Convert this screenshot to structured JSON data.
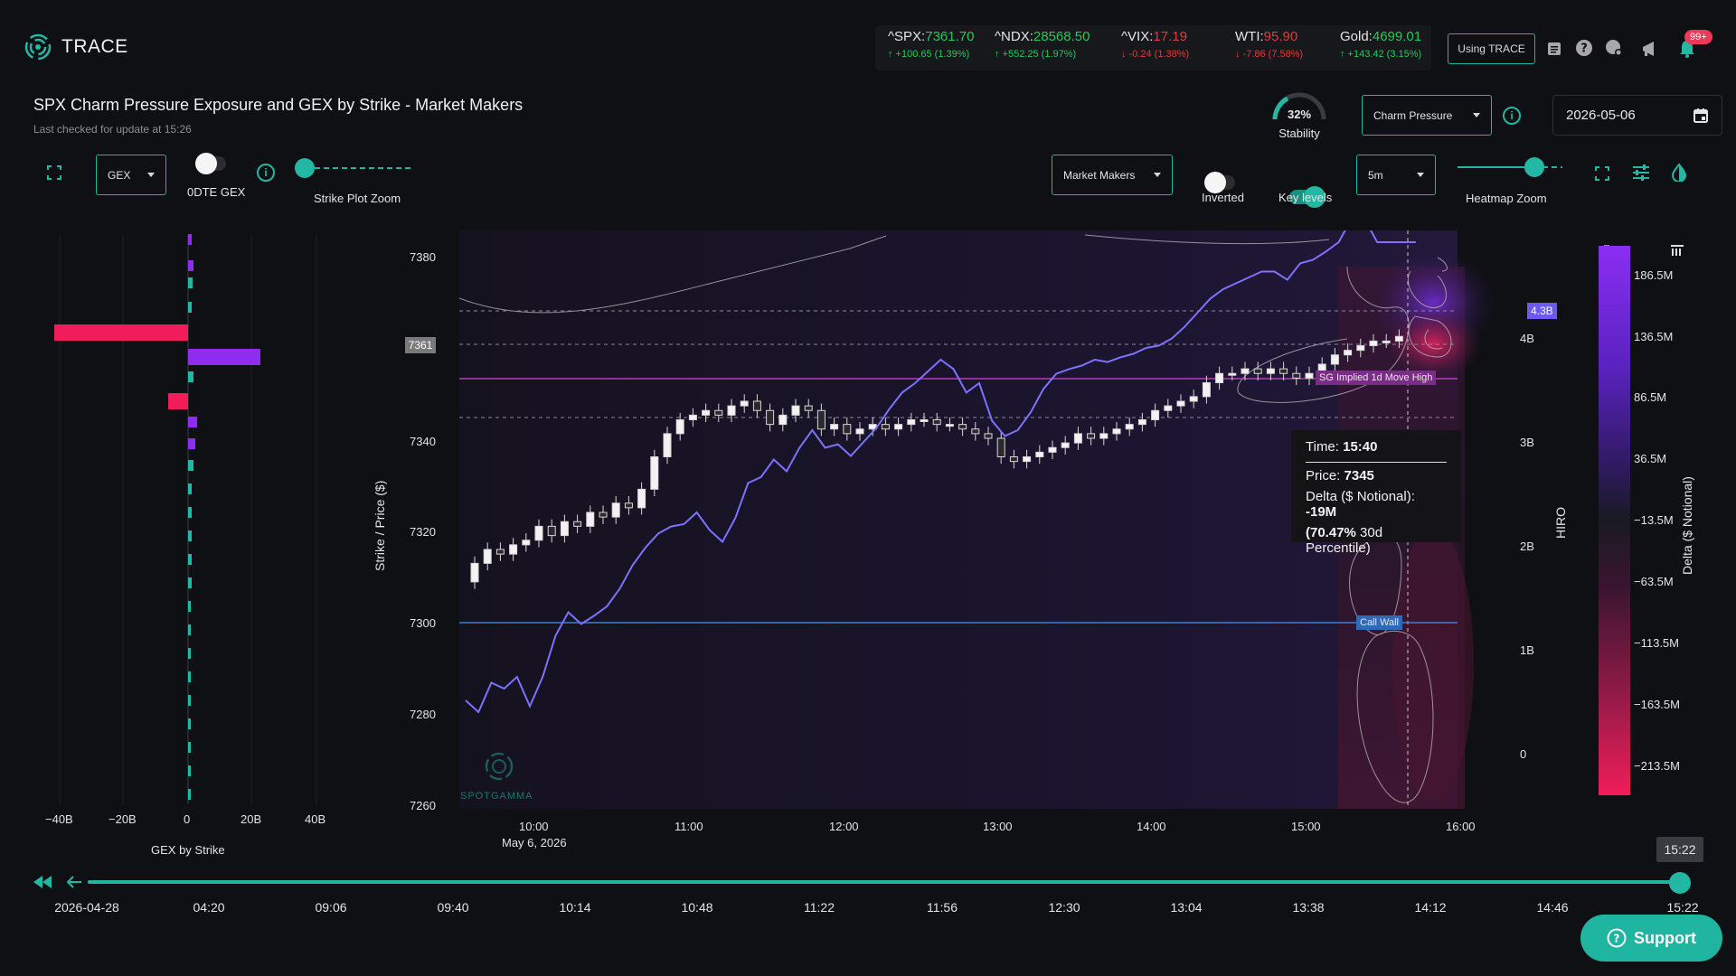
{
  "app": {
    "name": "TRACE"
  },
  "tickers": [
    {
      "symbol": "^SPX:",
      "value": "7361.70",
      "change": "↑ +100.65 (1.39%)",
      "dir": "up"
    },
    {
      "symbol": "^NDX:",
      "value": "28568.50",
      "change": "↑ +552.25 (1.97%)",
      "dir": "up"
    },
    {
      "symbol": "^VIX:",
      "value": "17.19",
      "change": "↓ -0.24 (1.38%)",
      "dir": "down"
    },
    {
      "symbol": "WTI:",
      "value": "95.90",
      "change": "↓ -7.86 (7.58%)",
      "dir": "down"
    },
    {
      "symbol": "Gold:",
      "value": "4699.01",
      "change": "↑ +143.42 (3.15%)",
      "dir": "up"
    }
  ],
  "header": {
    "using_trace": "Using TRACE",
    "notification_count": "99+",
    "title": "SPX Charm Pressure Exposure and GEX by Strike - Market Makers",
    "last_checked": "Last checked for update at 15:26",
    "stability_value": "32%",
    "stability_label": "Stability",
    "metric_select": "Charm Pressure",
    "date": "2026-05-06"
  },
  "controls": {
    "gex_select": "GEX",
    "odte_label": "0DTE GEX",
    "strike_zoom_label": "Strike Plot Zoom",
    "participant_select": "Market Makers",
    "inverted_label": "Inverted",
    "key_levels_label": "Key levels",
    "interval_select": "5m",
    "heatmap_zoom_label": "Heatmap Zoom"
  },
  "gex_axis": {
    "ticks": [
      "−40B",
      "−20B",
      "0",
      "20B",
      "40B"
    ],
    "title": "GEX by Strike"
  },
  "main_chart": {
    "y_title": "Strike / Price ($)",
    "y_ticks": [
      "7380",
      "7360",
      "7340",
      "7320",
      "7300",
      "7280",
      "7260"
    ],
    "price_tag": "7361",
    "x_ticks": [
      "10:00",
      "11:00",
      "12:00",
      "13:00",
      "14:00",
      "15:00",
      "16:00"
    ],
    "date_label": "May 6, 2026",
    "hiro_title": "HIRO",
    "hiro_ticks": [
      "4B",
      "3B",
      "2B",
      "1B",
      "0"
    ],
    "hiro_tag": "4.3B",
    "sg_level_label": "SG Implied 1d Move High",
    "call_wall_label": "Call Wall",
    "watermark": "SPOTGAMMA"
  },
  "tooltip": {
    "time_label": "Time:",
    "time": "15:40",
    "price_label": "Price:",
    "price": "7345",
    "delta_label": "Delta ($ Notional):",
    "delta": "-19M",
    "pct": "(70.47%",
    "pct_suffix": "30d Percentile)"
  },
  "colorbar": {
    "title": "Delta ($ Notional)",
    "ticks": [
      "186.5M",
      "136.5M",
      "86.5M",
      "36.5M",
      "−13.5M",
      "−63.5M",
      "−113.5M",
      "−163.5M",
      "−213.5M"
    ]
  },
  "timeline": {
    "current": "15:22",
    "labels": [
      "2026-04-28",
      "04:20",
      "09:06",
      "09:40",
      "10:14",
      "10:48",
      "11:22",
      "11:56",
      "12:30",
      "13:04",
      "13:38",
      "14:12",
      "14:46",
      "15:22"
    ]
  },
  "support_label": "Support",
  "colors": {
    "accent": "#1fb5a1",
    "hiro_line": "#7b72ff",
    "sg_line": "#b43fb8",
    "call_wall": "#3d7fd6",
    "neg_bar": "#f01d5a",
    "pos_bar": "#8e2cf0"
  },
  "chart_data": {
    "type": "line",
    "series": [
      {
        "x": [
          "09:30",
          "09:35",
          "09:40",
          "09:45",
          "09:50",
          "09:55",
          "10:00",
          "10:05",
          "10:10",
          "10:15",
          "10:20",
          "10:25",
          "10:30",
          "10:35",
          "10:40",
          "10:45",
          "10:50",
          "10:55",
          "11:00",
          "11:05",
          "11:10",
          "11:15",
          "11:20",
          "11:25",
          "11:30",
          "11:35",
          "11:40",
          "11:45",
          "11:50",
          "11:55",
          "12:00",
          "12:05",
          "12:10",
          "12:15",
          "12:20",
          "12:25",
          "12:30",
          "12:35",
          "12:40",
          "12:45",
          "12:50",
          "12:55",
          "13:00",
          "13:05",
          "13:10",
          "13:15",
          "13:20",
          "13:25",
          "13:30",
          "13:35",
          "13:40",
          "13:45",
          "13:50",
          "13:55",
          "14:00",
          "14:05",
          "14:10",
          "14:15",
          "14:20",
          "14:25",
          "14:30",
          "14:35",
          "14:40",
          "14:45",
          "14:50",
          "14:55",
          "15:00",
          "15:05",
          "15:10",
          "15:15",
          "15:20",
          "15:25",
          "15:30",
          "15:35",
          "15:40"
        ],
        "values": [
          0.4,
          0.3,
          0.55,
          0.5,
          0.6,
          0.35,
          0.6,
          0.95,
          1.15,
          1.05,
          1.12,
          1.2,
          1.35,
          1.55,
          1.7,
          1.82,
          1.88,
          1.9,
          2.0,
          1.85,
          1.75,
          1.95,
          2.25,
          2.3,
          2.45,
          2.35,
          2.55,
          2.7,
          2.55,
          2.58,
          2.48,
          2.6,
          2.72,
          2.88,
          3.02,
          3.1,
          3.2,
          3.3,
          3.22,
          3.02,
          3.1,
          2.78,
          2.65,
          2.7,
          2.85,
          3.05,
          3.18,
          3.22,
          3.25,
          3.3,
          3.28,
          3.32,
          3.35,
          3.4,
          3.42,
          3.48,
          3.58,
          3.7,
          3.82,
          3.9,
          3.95,
          4.0,
          4.05,
          4.05,
          3.98,
          4.12,
          4.15,
          4.22,
          4.3,
          4.5,
          4.5,
          4.3,
          4.3,
          4.3,
          4.3
        ]
      }
    ],
    "candles_close": [
      7313,
      7316,
      7315,
      7317,
      7318,
      7321,
      7319,
      7322,
      7321,
      7324,
      7323,
      7326,
      7325,
      7329,
      7336,
      7341,
      7344,
      7345,
      7346,
      7345,
      7347,
      7348,
      7346,
      7343,
      7345,
      7347,
      7346,
      7342,
      7343,
      7341,
      7342,
      7343,
      7342,
      7343,
      7344,
      7344,
      7343,
      7343,
      7342,
      7341,
      7340,
      7336,
      7335,
      7336,
      7337,
      7338,
      7339,
      7341,
      7340,
      7341,
      7342,
      7343,
      7344,
      7346,
      7347,
      7348,
      7349,
      7352,
      7354,
      7354,
      7355,
      7354,
      7355,
      7354,
      7353,
      7354,
      7356,
      7358,
      7359,
      7360,
      7361,
      7361,
      7362
    ]
  }
}
